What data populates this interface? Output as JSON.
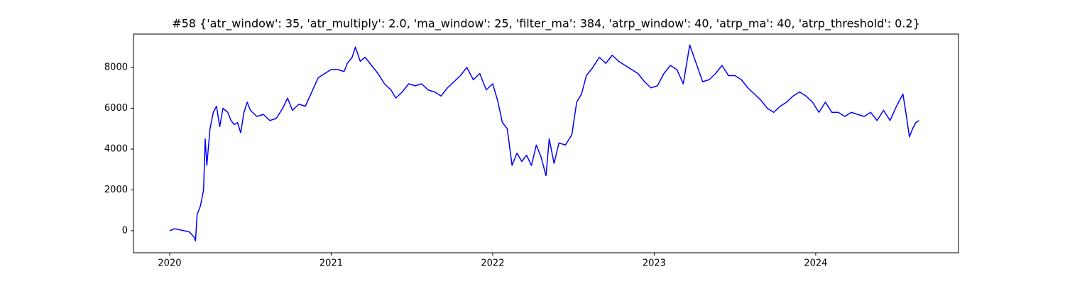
{
  "chart_data": {
    "type": "line",
    "title": "#58 {'atr_window': 35, 'atr_multiply': 2.0, 'ma_window': 25, 'filter_ma': 384, 'atrp_window': 40, 'atrp_ma': 40, 'atrp_threshold': 0.2}",
    "color": "#0000ff",
    "x": [
      2020.0,
      2020.03,
      2020.06,
      2020.09,
      2020.12,
      2020.15,
      2020.16,
      2020.17,
      2020.19,
      2020.21,
      2020.22,
      2020.23,
      2020.25,
      2020.27,
      2020.29,
      2020.31,
      2020.33,
      2020.36,
      2020.38,
      2020.4,
      2020.42,
      2020.44,
      2020.46,
      2020.48,
      2020.5,
      2020.54,
      2020.58,
      2020.62,
      2020.66,
      2020.7,
      2020.73,
      2020.76,
      2020.8,
      2020.84,
      2020.88,
      2020.92,
      2020.96,
      2021.0,
      2021.04,
      2021.08,
      2021.1,
      2021.13,
      2021.15,
      2021.18,
      2021.21,
      2021.25,
      2021.29,
      2021.33,
      2021.37,
      2021.4,
      2021.44,
      2021.48,
      2021.52,
      2021.56,
      2021.6,
      2021.64,
      2021.68,
      2021.72,
      2021.76,
      2021.8,
      2021.84,
      2021.88,
      2021.92,
      2021.96,
      2022.0,
      2022.03,
      2022.06,
      2022.09,
      2022.12,
      2022.15,
      2022.18,
      2022.21,
      2022.24,
      2022.27,
      2022.3,
      2022.33,
      2022.35,
      2022.38,
      2022.41,
      2022.45,
      2022.49,
      2022.52,
      2022.55,
      2022.58,
      2022.62,
      2022.66,
      2022.7,
      2022.74,
      2022.78,
      2022.82,
      2022.86,
      2022.9,
      2022.94,
      2022.98,
      2023.02,
      2023.06,
      2023.1,
      2023.14,
      2023.18,
      2023.22,
      2023.26,
      2023.3,
      2023.34,
      2023.38,
      2023.42,
      2023.46,
      2023.5,
      2023.54,
      2023.58,
      2023.62,
      2023.66,
      2023.7,
      2023.74,
      2023.78,
      2023.82,
      2023.86,
      2023.9,
      2023.94,
      2023.98,
      2024.02,
      2024.06,
      2024.1,
      2024.14,
      2024.18,
      2024.22,
      2024.26,
      2024.3,
      2024.34,
      2024.38,
      2024.42,
      2024.46,
      2024.5,
      2024.54,
      2024.56,
      2024.58,
      2024.6,
      2024.62,
      2024.64
    ],
    "values": [
      0,
      100,
      50,
      0,
      -50,
      -300,
      -500,
      800,
      1200,
      2000,
      4500,
      3200,
      5000,
      5800,
      6100,
      5100,
      6000,
      5800,
      5400,
      5200,
      5300,
      4800,
      5800,
      6300,
      5900,
      5600,
      5700,
      5400,
      5500,
      6000,
      6500,
      5900,
      6200,
      6100,
      6800,
      7500,
      7700,
      7900,
      7900,
      7800,
      8200,
      8500,
      9000,
      8300,
      8500,
      8100,
      7700,
      7200,
      6900,
      6500,
      6800,
      7200,
      7100,
      7200,
      6900,
      6800,
      6600,
      7000,
      7300,
      7600,
      8000,
      7400,
      7700,
      6900,
      7200,
      6400,
      5300,
      5000,
      3200,
      3800,
      3400,
      3700,
      3200,
      4200,
      3600,
      2700,
      4500,
      3300,
      4300,
      4200,
      4700,
      6300,
      6700,
      7600,
      8000,
      8500,
      8200,
      8600,
      8300,
      8100,
      7900,
      7700,
      7300,
      7000,
      7100,
      7700,
      8100,
      7900,
      7200,
      9100,
      8200,
      7300,
      7400,
      7700,
      8100,
      7600,
      7600,
      7400,
      7000,
      6700,
      6400,
      6000,
      5800,
      6100,
      6300,
      6600,
      6800,
      6600,
      6300,
      5800,
      6300,
      5800,
      5800,
      5600,
      5800,
      5700,
      5600,
      5800,
      5400,
      5900,
      5400,
      6100,
      6700,
      5700,
      4600,
      5000,
      5300,
      5400
    ],
    "xlim": [
      2019.776,
      2024.884
    ],
    "xticks": [
      2020,
      2021,
      2022,
      2023,
      2024
    ],
    "ylim": [
      -1078,
      9635
    ],
    "yticks": [
      0,
      2000,
      4000,
      6000,
      8000
    ]
  }
}
